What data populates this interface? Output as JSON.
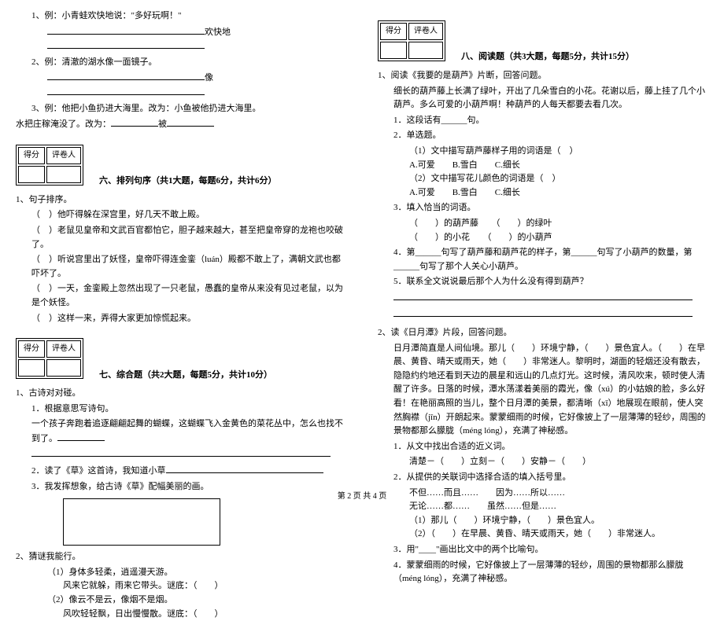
{
  "scorebox": {
    "c1": "得分",
    "c2": "评卷人"
  },
  "left": {
    "q1_1": "1、例：小青蛙欢快地说：\"多好玩啊！\"",
    "q1_1b": "欢快地",
    "q1_2": "2、例：清澈的湖水像一面镜子。",
    "q1_2b": "像",
    "q1_3": "3、例：他把小鱼扔进大海里。改为：小鱼被他扔进大海里。",
    "q1_3b": "水把庄稼淹没了。改为：",
    "q1_3c": "被",
    "sec6_title": "六、排列句序（共1大题，每题6分，共计6分）",
    "s6_head": "1、句子排序。",
    "s6_a": "（　）他吓得躲在深宫里，好几天不敢上殿。",
    "s6_b": "（　）老鼠见皇帝和文武百官都怕它，胆子越来越大，甚至把皇帝穿的龙袍也咬破了。",
    "s6_c": "（　）听说宫里出了妖怪，皇帝吓得连金銮（luán）殿都不敢上了，满朝文武也都吓坏了。",
    "s6_d": "（　）一天，金銮殿上忽然出现了一只老鼠，愚蠢的皇帝从来没有见过老鼠，以为是个妖怪。",
    "s6_e": "（　）这样一来，弄得大家更加惊慌起来。",
    "sec7_title": "七、综合题（共2大题，每题5分，共计10分）",
    "s7_1": "1、古诗对对碰。",
    "s7_1a": "1．根据意思写诗句。",
    "s7_1b": "一个孩子奔跑着追逐翩翩起舞的蝴蝶，这蝴蝶飞入金黄色的菜花丛中，怎么也找不到了。",
    "s7_1c": "2．读了《草》这首诗，我知道小草",
    "s7_1d": "3．我发挥想象，给古诗《草》配幅美丽的画。",
    "s7_2": "2、猜谜我能行。",
    "s7_2a": "（1）身体多轻柔，逍遥漫天游。",
    "s7_2b": "风来它就躲，雨来它带头。谜底：（　　）",
    "s7_2c": "（2）像云不是云，像烟不是烟。",
    "s7_2d": "风吹轻轻飘，日出慢慢散。谜底：（　　）"
  },
  "right": {
    "sec8_title": "八、阅读题（共3大题，每题5分，共计15分）",
    "r1": "1、阅读《我要的是葫芦》片断，回答问题。",
    "r1_p": "细长的葫芦藤上长满了绿叶，开出了几朵雪白的小花。花谢以后，藤上挂了几个小葫芦。多么可爱的小葫芦啊！种葫芦的人每天都要去看几次。",
    "r1_1": "1．这段话有______句。",
    "r1_2": "2．单选题。",
    "r1_2a": "（1）文中描写葫芦藤样子用的词语是（　）",
    "r1_2a_opt": "A.可爱　　B.雪白　　C.细长",
    "r1_2b": "（2）文中描写花儿颜色的词语是（　）",
    "r1_2b_opt": "A.可爱　　B.雪白　　C.细长",
    "r1_3": "3．填入恰当的词语。",
    "r1_3a": "（　　）的葫芦藤　　（　　）的绿叶",
    "r1_3b": "（　　）的小花　　（　　）的小葫芦",
    "r1_4": "4．第______句写了葫芦藤和葫芦花的样子，第______句写了小葫芦的数量，第______句写了那个人关心小葫芦。",
    "r1_5": "5．联系全文说说最后那个人为什么没有得到葫芦？",
    "r2": "2、读《日月潭》片段，回答问题。",
    "r2_p": "日月潭简直是人间仙境。那儿（　　）环境宁静，（　　）景色宜人。（　　）在早晨、黄昏、晴天或雨天，她（　　）非常迷人。黎明时，湖面的轻烟还没有散去，隐隐约约地还看到天边的晨星和远山的几点灯光。这时候，清风吹来，顿时使人清醒了许多。日落的时候，潭水荡漾着美丽的霞光，像（xú）的小姑娘的脸，多么好看！在艳丽高照的当儿，整个日月潭的美景，都清晰（xī）地展现在眼前，使人突然胸襟（jīn）开朗起来。蒙蒙细雨的时候，它好像披上了一层薄薄的轻纱，周围的景物都那么朦胧（méng lóng），充满了神秘感。",
    "r2_1": "1．从文中找出合适的近义词。",
    "r2_1a": "清楚－（　　）立刻－（　　）安静－（　　）",
    "r2_2": "2．从提供的关联词中选择合适的填入括号里。",
    "r2_2a": "不但……而且……　　因为……所以……",
    "r2_2b": "无论……都……　　虽然……但是……",
    "r2_2c": "（1）那儿（　　）环境宁静，（　　）景色宜人。",
    "r2_2d": "（2）（　　）在早晨、黄昏、晴天或雨天，她（　　）非常迷人。",
    "r2_3": "3．用\"____\"画出比文中的两个比喻句。",
    "r2_4": "4．蒙蒙细雨的时候，它好像披上了一层薄薄的轻纱，周围的景物都那么朦胧（méng lóng），充满了神秘感。"
  },
  "footer": "第 2 页 共 4 页"
}
